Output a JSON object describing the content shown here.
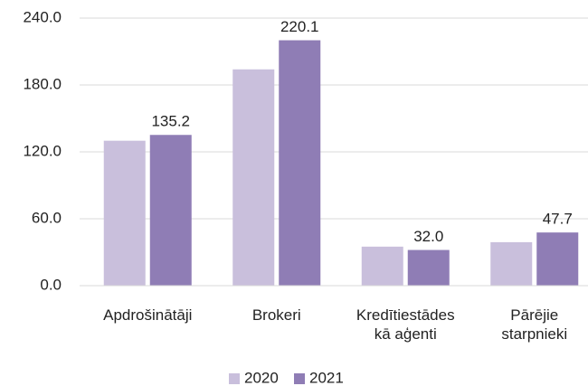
{
  "chart_data": {
    "type": "bar",
    "categories": [
      "Apdrošinātāji",
      "Brokeri",
      "Kredītiestādes kā aģenti",
      "Pārējie starpnieki"
    ],
    "series": [
      {
        "name": "2020",
        "color": "#c9bfdc",
        "values": [
          130,
          194,
          35,
          39
        ]
      },
      {
        "name": "2021",
        "color": "#8f7db5",
        "values": [
          135.2,
          220.1,
          32,
          47.7
        ],
        "value_labels": [
          "135.2",
          "220.1",
          "32.0",
          "47.7"
        ]
      }
    ],
    "ylim": [
      0,
      240
    ],
    "yticks": [
      {
        "value": 0,
        "label": "0.0"
      },
      {
        "value": 60,
        "label": "60.0"
      },
      {
        "value": 120,
        "label": "120.0"
      },
      {
        "value": 180,
        "label": "180.0"
      },
      {
        "value": 240,
        "label": "240.0"
      }
    ],
    "grid": true,
    "legend": "bottom"
  }
}
